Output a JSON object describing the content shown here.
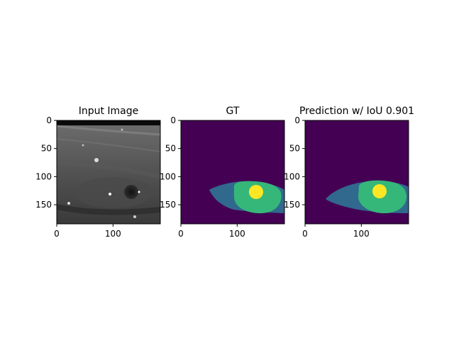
{
  "figure": {
    "panels": [
      {
        "id": "input",
        "title": "Input Image"
      },
      {
        "id": "gt",
        "title": "GT"
      },
      {
        "id": "pred",
        "title": "Prediction w/ IoU 0.901"
      }
    ]
  },
  "chart_data": [
    {
      "type": "heatmap",
      "title": "Input Image",
      "colormap": "gray",
      "image_size": [
        184,
        184
      ],
      "xticks": [
        0,
        100
      ],
      "yticks": [
        0,
        50,
        100,
        150
      ],
      "xlim": [
        0,
        184
      ],
      "ylim": [
        184,
        0
      ]
    },
    {
      "type": "heatmap",
      "title": "GT",
      "colormap": "viridis",
      "classes": [
        0,
        1,
        2,
        3
      ],
      "class_colors": [
        "#440154",
        "#31688e",
        "#35b779",
        "#fde725"
      ],
      "image_size": [
        184,
        184
      ],
      "xticks": [
        0,
        100
      ],
      "yticks": [
        0,
        50,
        100,
        150
      ],
      "xlim": [
        0,
        184
      ],
      "ylim": [
        184,
        0
      ]
    },
    {
      "type": "heatmap",
      "title": "Prediction w/ IoU 0.901",
      "colormap": "viridis",
      "classes": [
        0,
        1,
        2,
        3
      ],
      "class_colors": [
        "#440154",
        "#31688e",
        "#35b779",
        "#fde725"
      ],
      "iou": 0.901,
      "image_size": [
        184,
        184
      ],
      "xticks": [
        0,
        100
      ],
      "yticks": [
        0,
        50,
        100,
        150
      ],
      "xlim": [
        0,
        184
      ],
      "ylim": [
        184,
        0
      ]
    }
  ]
}
